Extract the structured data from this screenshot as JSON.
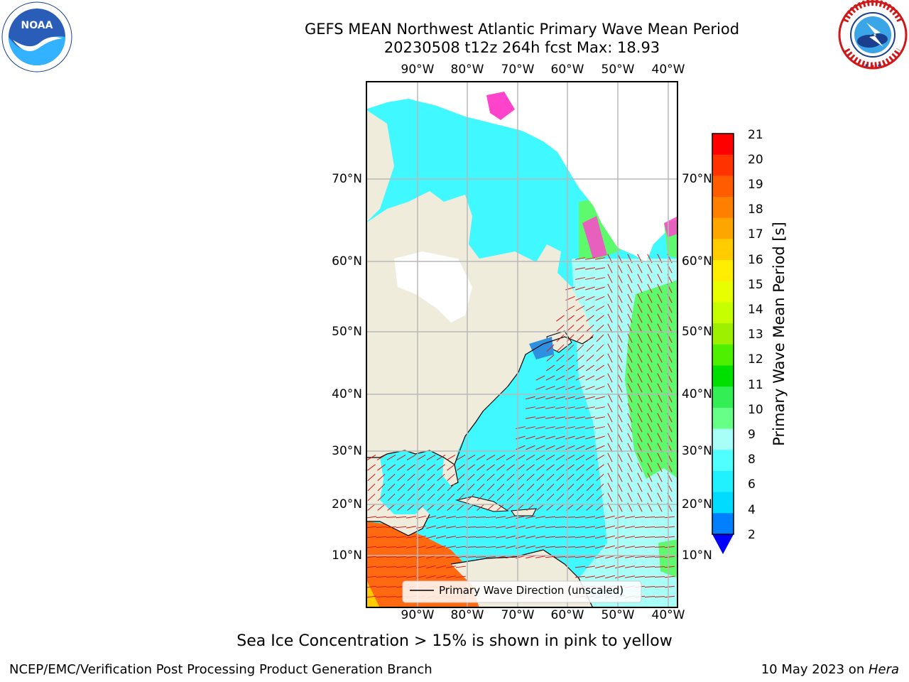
{
  "header": {
    "title_line1": "GEFS MEAN Northwest Atlantic Primary Wave Mean Period",
    "title_line2": "20230508 t12z 264h fcst   Max: 18.93"
  },
  "logos": {
    "noaa_text": "NOAA",
    "noaa_ring_text": "NATIONAL OCEANIC AND ATMOSPHERIC ADMINISTRATION · U.S. DEPARTMENT OF COMMERCE",
    "nws_ring_text": "NATIONAL WEATHER SERVICE"
  },
  "map": {
    "lon_ticks": [
      "90°W",
      "80°W",
      "70°W",
      "60°W",
      "50°W",
      "40°W"
    ],
    "lat_ticks": [
      "70°N",
      "60°N",
      "50°N",
      "40°N",
      "30°N",
      "20°N",
      "10°N"
    ],
    "legend_label": "Primary Wave Direction (unscaled)",
    "colors": {
      "land": "#efecdc",
      "ice_white": "#ffffff",
      "cyan": "#40f8ff",
      "light_cyan": "#a8fff8",
      "green": "#5dfa6e",
      "orange": "#ff6a10",
      "arrow": "#e01010",
      "grid": "#b8b8b8"
    }
  },
  "colorbar": {
    "title": "Primary Wave Mean Period [s]",
    "labels": [
      "21",
      "20",
      "19",
      "18",
      "17",
      "16",
      "15",
      "14",
      "13",
      "12",
      "11",
      "10",
      "9",
      "8",
      "6",
      "4",
      "2"
    ],
    "segment_colors": [
      "#ff0000",
      "#ff3300",
      "#ff5c00",
      "#ff7f00",
      "#ffa500",
      "#ffcc00",
      "#ffee00",
      "#e8ff00",
      "#c6ff00",
      "#9cf000",
      "#4ef000",
      "#00e000",
      "#33ee55",
      "#66ff88",
      "#a8fff8",
      "#50ffff",
      "#20f0ff",
      "#00dcff",
      "#0080ff"
    ],
    "extend_color": "#0000ff"
  },
  "footer": {
    "note": "Sea Ice Concentration > 15% is shown in pink to yellow",
    "left": "NCEP/EMC/Verification Post Processing Product Generation Branch",
    "right_prefix": "10 May 2023 on ",
    "right_machine": "Hera"
  }
}
